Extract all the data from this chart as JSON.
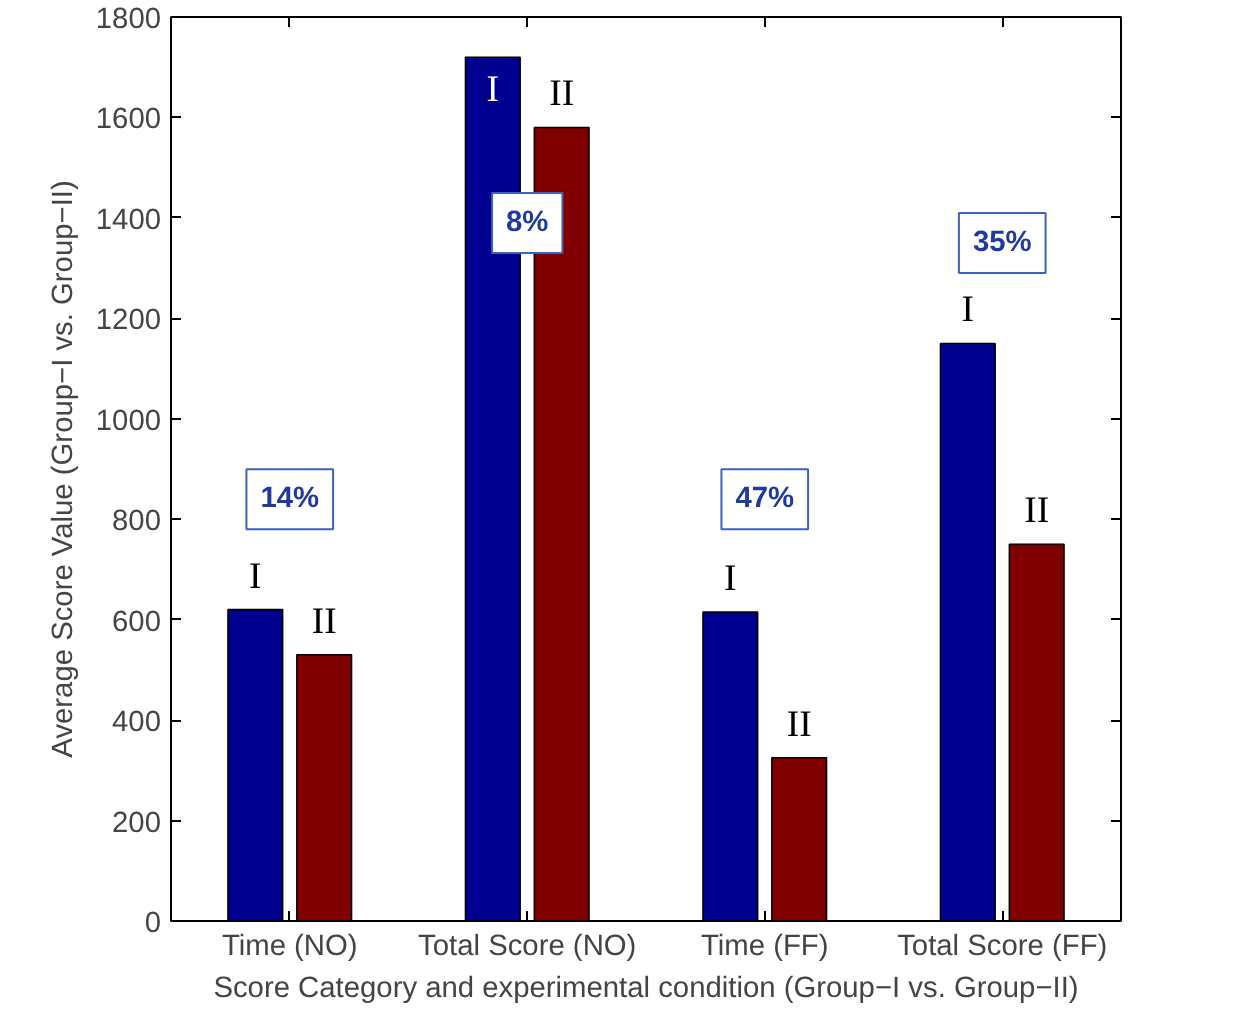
{
  "chart_data": {
    "type": "bar",
    "xlabel": "Score Category and experimental condition (Group−I vs. Group−II)",
    "ylabel": "Average Score Value (Group−I vs. Group−II)",
    "categories": [
      "Time (NO)",
      "Total Score (NO)",
      "Time (FF)",
      "Total Score (FF)"
    ],
    "series": [
      {
        "name": "I",
        "color": "#000090",
        "values": [
          620,
          1720,
          615,
          1150
        ]
      },
      {
        "name": "II",
        "color": "#800000",
        "values": [
          530,
          1580,
          325,
          750
        ]
      }
    ],
    "ylim": [
      0,
      1800
    ],
    "yticks": [
      0,
      200,
      400,
      600,
      800,
      1000,
      1200,
      1400,
      1600,
      1800
    ],
    "grid": false,
    "annotations": [
      {
        "text": "14%",
        "x": "Time (NO)",
        "y": 840
      },
      {
        "text": "8%",
        "x": "Total Score (NO)",
        "y": 1390
      },
      {
        "text": "47%",
        "x": "Time (FF)",
        "y": 840
      },
      {
        "text": "35%",
        "x": "Total Score (FF)",
        "y": 1350
      }
    ]
  }
}
